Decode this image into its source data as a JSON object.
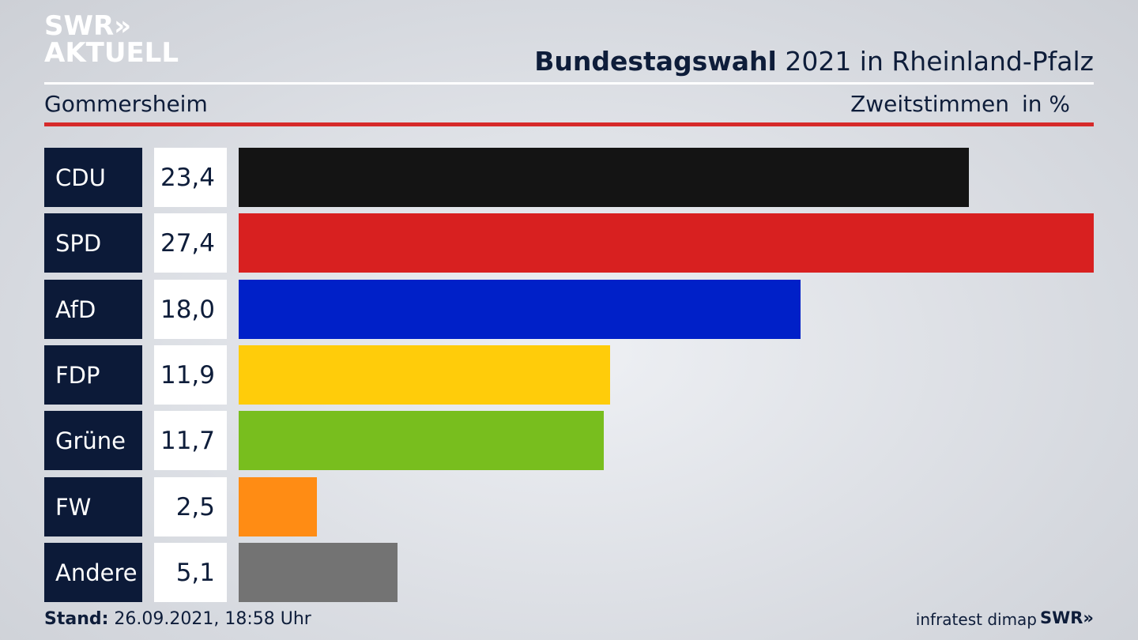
{
  "logo": {
    "line1": "SWR»",
    "line2": "AKTUELL"
  },
  "header": {
    "title_bold": "Bundestagswahl",
    "title_rest": " 2021 in Rheinland-Pfalz",
    "place": "Gommersheim",
    "vote_type": "Zweitstimmen",
    "unit": "in %"
  },
  "chart_data": {
    "type": "bar",
    "orientation": "horizontal",
    "title": "Bundestagswahl 2021 in Rheinland-Pfalz",
    "subtitle": "Gommersheim",
    "categories": [
      "CDU",
      "SPD",
      "AfD",
      "FDP",
      "Grüne",
      "FW",
      "Andere"
    ],
    "values": [
      23.4,
      27.4,
      18.0,
      11.9,
      11.7,
      2.5,
      5.1
    ],
    "value_labels": [
      "23,4",
      "27,4",
      "18,0",
      "11,9",
      "11,7",
      "2,5",
      "5,1"
    ],
    "colors": [
      "#141414",
      "#d82020",
      "#0020c8",
      "#ffcc0a",
      "#78be1e",
      "#ff8c14",
      "#737373"
    ],
    "xlim": [
      0,
      27.4
    ],
    "grid": false
  },
  "footer": {
    "stand_label": "Stand:",
    "stand_value": " 26.09.2021, 18:58 Uhr",
    "source": "infratest dimap",
    "brand": "SWR»"
  }
}
